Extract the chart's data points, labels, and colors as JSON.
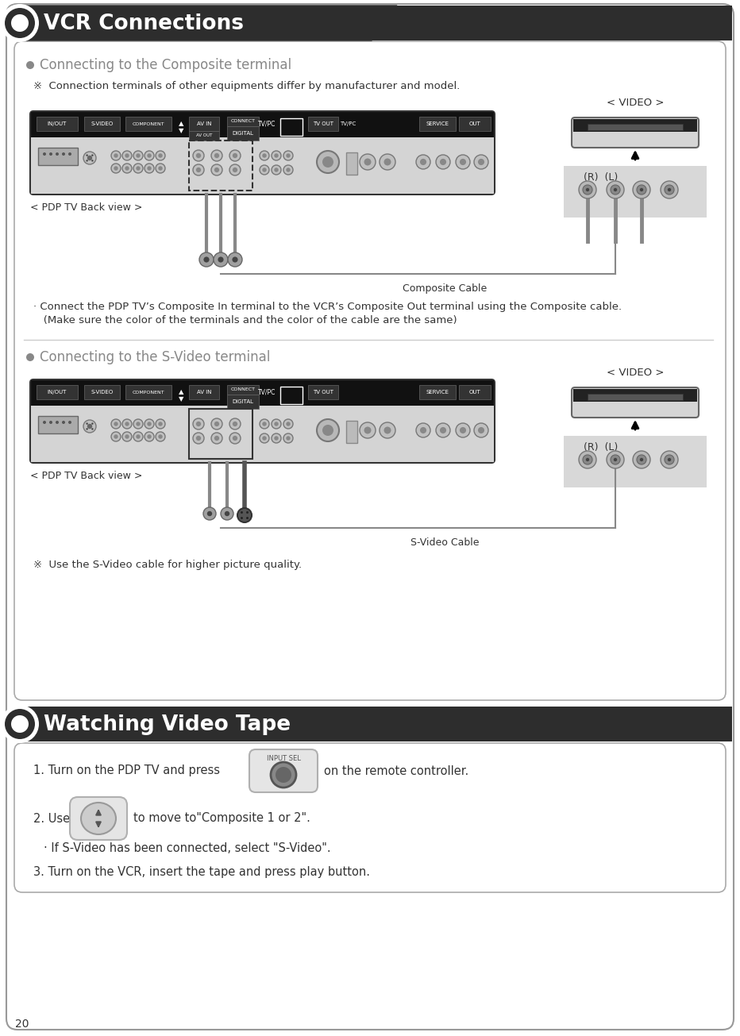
{
  "page_bg": "#ffffff",
  "header1_bg": "#2d2d2d",
  "header1_text": "VCR Connections",
  "header2_bg": "#2d2d2d",
  "header2_text": "Watching Video Tape",
  "section1_title": "Connecting to the Composite terminal",
  "section2_title": "Connecting to the S-Video terminal",
  "note1": "※  Connection terminals of other equipments differ by manufacturer and model.",
  "note2": "※  Use the S-Video cable for higher picture quality.",
  "composite_note1": "· Connect the PDP TV’s Composite In terminal to the VCR’s Composite Out terminal using the Composite cable.",
  "composite_note2": "   (Make sure the color of the terminals and the color of the cable are the same)",
  "pdp_label": "< PDP TV Back view >",
  "composite_cable_label": "Composite Cable",
  "svideo_cable_label": "S-Video Cable",
  "video_label": "< VIDEO >",
  "rl_label": "(R)  (L)",
  "step1": "1. Turn on the PDP TV and press",
  "step1b": "on the remote controller.",
  "step2": "2. Use",
  "step2b": "to move to\"Composite 1 or 2\".",
  "step2c": "· If S-Video has been connected, select \"S-Video\".",
  "step3": "3. Turn on the VCR, insert the tape and press play button.",
  "page_num": "20",
  "body_color": "#333333",
  "title_color": "#888888",
  "tv_top_bg": "#1a1a1a",
  "tv_body_bg": "#cccccc",
  "tv_border": "#555555",
  "vcr_bg": "#d8d8d8",
  "vcr_border": "#888888",
  "rca_panel_bg": "#d0d0d0",
  "cable_color": "#888888",
  "connector_outer": "#aaaaaa",
  "connector_inner": "#666666"
}
